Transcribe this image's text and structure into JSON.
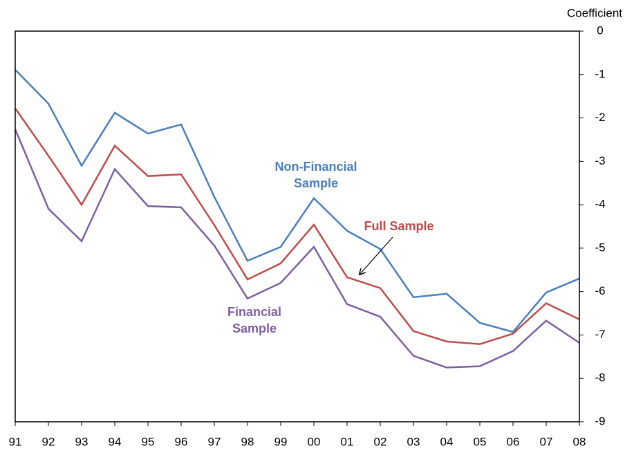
{
  "chart_data": {
    "type": "line",
    "y_axis_label": "Coefficient",
    "categories": [
      "91",
      "92",
      "93",
      "94",
      "95",
      "96",
      "97",
      "98",
      "99",
      "00",
      "01",
      "02",
      "03",
      "04",
      "05",
      "06",
      "07",
      "08"
    ],
    "series": [
      {
        "name": "Non-Financial Sample",
        "color": "#4a7ebb",
        "values": [
          -0.89,
          -1.67,
          -3.1,
          -1.88,
          -2.36,
          -2.15,
          -3.82,
          -5.29,
          -4.97,
          -3.85,
          -4.6,
          -5.02,
          -6.13,
          -6.05,
          -6.72,
          -6.93,
          -6.02,
          -5.7
        ]
      },
      {
        "name": "Full Sample",
        "color": "#be4b48",
        "values": [
          -1.78,
          -2.87,
          -4.0,
          -2.64,
          -3.34,
          -3.3,
          -4.47,
          -5.72,
          -5.35,
          -4.46,
          -5.67,
          -5.92,
          -6.91,
          -7.15,
          -7.21,
          -6.97,
          -6.27,
          -6.64
        ]
      },
      {
        "name": "Financial Sample",
        "color": "#7d5fa0",
        "values": [
          -2.26,
          -4.09,
          -4.84,
          -3.18,
          -4.03,
          -4.06,
          -4.94,
          -6.16,
          -5.8,
          -4.97,
          -6.29,
          -6.58,
          -7.48,
          -7.75,
          -7.72,
          -7.37,
          -6.67,
          -7.18
        ]
      }
    ],
    "ylim": [
      -9,
      0
    ],
    "yticks": [
      0,
      -1,
      -2,
      -3,
      -4,
      -5,
      -6,
      -7,
      -8,
      -9
    ],
    "y_axis_side": "right"
  }
}
